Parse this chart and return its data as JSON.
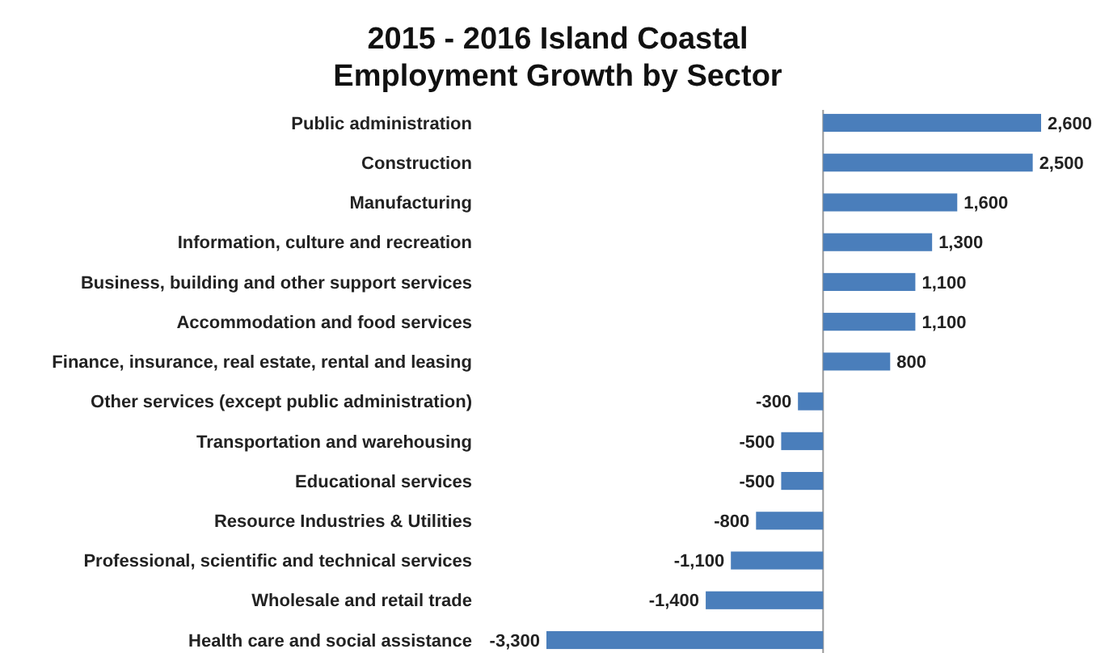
{
  "chart_data": {
    "type": "bar",
    "orientation": "horizontal",
    "title": "2015 - 2016 Island Coastal Employment Growth by Sector",
    "categories": [
      "Public administration",
      "Construction",
      "Manufacturing",
      "Information, culture and recreation",
      "Business, building and other support services",
      "Accommodation and food services",
      "Finance, insurance, real estate, rental and leasing",
      "Other services (except public administration)",
      "Transportation and warehousing",
      "Educational services",
      "Resource Industries & Utilities",
      "Professional, scientific and technical services",
      "Wholesale and retail trade",
      "Health care and social assistance"
    ],
    "values": [
      2600,
      2500,
      1600,
      1300,
      1100,
      1100,
      800,
      -300,
      -500,
      -500,
      -800,
      -1100,
      -1400,
      -3300
    ],
    "value_labels": [
      "2,600",
      "2,500",
      "1,600",
      "1,300",
      "1,100",
      "1,100",
      "800",
      "-300",
      "-500",
      "-500",
      "-800",
      "-1,100",
      "-1,400",
      "-3,300"
    ],
    "color": "#4a7ebb"
  }
}
